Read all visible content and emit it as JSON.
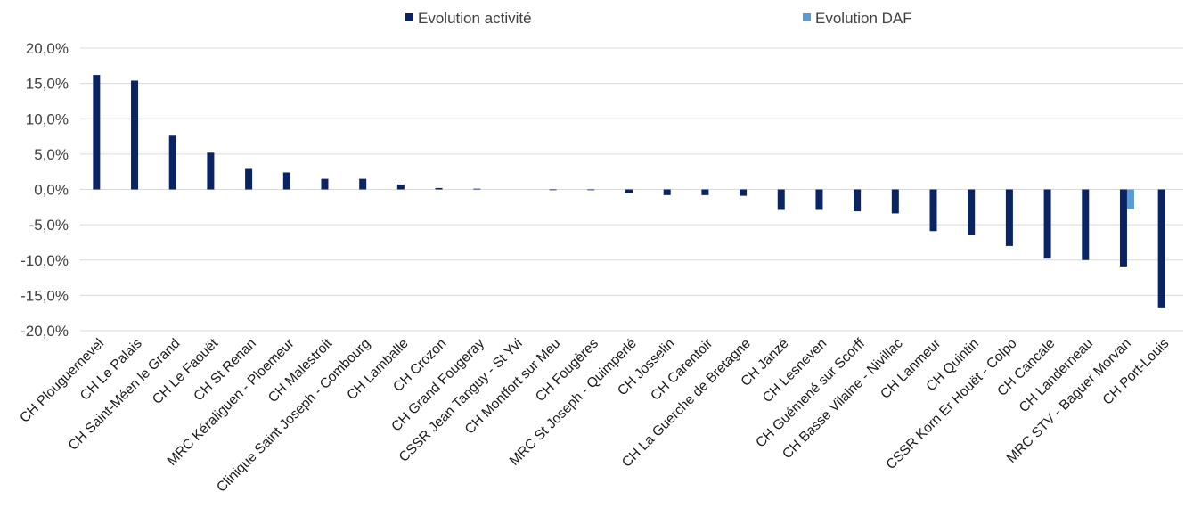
{
  "chart_data": {
    "type": "bar",
    "title": "",
    "xlabel": "",
    "ylabel": "",
    "ylim": [
      -20,
      20
    ],
    "yticks": [
      20,
      15,
      10,
      5,
      0,
      -5,
      -10,
      -15,
      -20
    ],
    "ytick_labels": [
      "20,0%",
      "15,0%",
      "10,0%",
      "5,0%",
      "0,0%",
      "-5,0%",
      "-10,0%",
      "-15,0%",
      "-20,0%"
    ],
    "grid": true,
    "legend_position": "top",
    "categories": [
      "CH Plouguernevel",
      "CH Le Palais",
      "CH Saint-Méen le Grand",
      "CH Le Faouët",
      "CH St Renan",
      "MRC Kéraliguen - Ploemeur",
      "CH Malestroit",
      "Clinique Saint Joseph - Combourg",
      "CH Lamballe",
      "CH Crozon",
      "CH Grand Fougeray",
      "CSSR Jean Tanguy - St Yvi",
      "CH Montfort sur Meu",
      "CH Fougères",
      "MRC St Joseph - Quimperlé",
      "CH Josselin",
      "CH Carentoir",
      "CH La Guerche de Bretagne",
      "CH Janzé",
      "CH Lesneven",
      "CH Guémené sur Scorff",
      "CH Basse Vilaine - Nivillac",
      "CH Lanmeur",
      "CH Quintin",
      "CSSR Korn Er Houët - Colpo",
      "CH Cancale",
      "CH Landerneau",
      "MRC STV - Baguer Morvan",
      "CH Port-Louis"
    ],
    "series": [
      {
        "name": "Evolution activité",
        "color": "#0a2362",
        "values": [
          16.2,
          15.4,
          7.6,
          5.2,
          2.9,
          2.4,
          1.5,
          1.5,
          0.7,
          0.2,
          0.1,
          0.0,
          -0.1,
          -0.1,
          -0.5,
          -0.8,
          -0.8,
          -0.9,
          -2.9,
          -2.9,
          -3.1,
          -3.4,
          -5.9,
          -6.5,
          -8.0,
          -9.8,
          -10.0,
          -10.9,
          -16.7
        ]
      },
      {
        "name": "Evolution DAF",
        "color": "#5b9bd5",
        "values": [
          0,
          0,
          0,
          0,
          0,
          0,
          0,
          0,
          0,
          0,
          0,
          0,
          0,
          0,
          0,
          0,
          0,
          0,
          0,
          0,
          0,
          0,
          0,
          0,
          0,
          0,
          0,
          -2.8,
          0
        ]
      }
    ]
  }
}
